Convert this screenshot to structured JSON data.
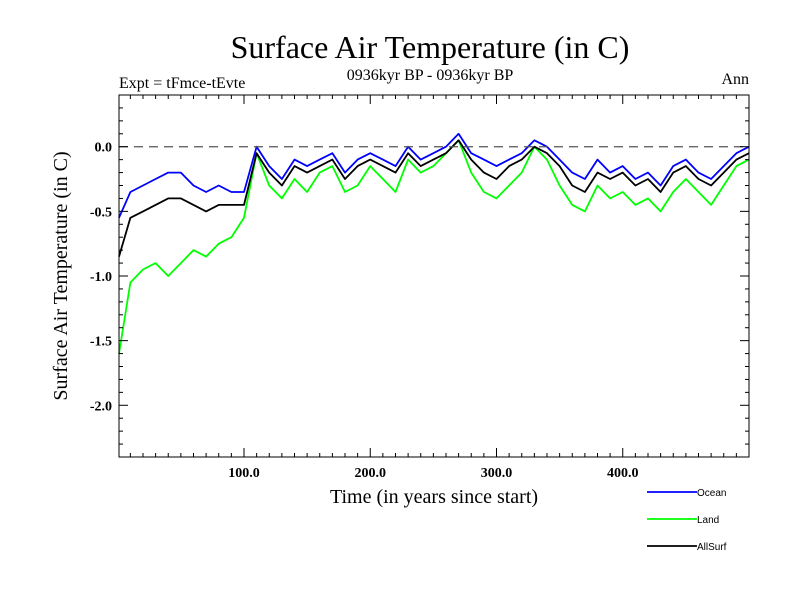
{
  "chart_data": {
    "type": "line",
    "title": "Surface Air Temperature (in C)",
    "subtitle": "0936kyr BP - 0936kyr BP",
    "left_label": "Expt = tFmce-tEvte",
    "right_label": "Ann",
    "xlabel": "Time (in years since start)",
    "ylabel": "Surface Air Temperature (in C)",
    "xlim": [
      1,
      500
    ],
    "ylim": [
      -2.4,
      0.4
    ],
    "x_ticks": [
      100,
      200,
      300,
      400
    ],
    "x_tick_labels": [
      "100.0",
      "200.0",
      "300.0",
      "400.0"
    ],
    "y_ticks": [
      0.0,
      -0.5,
      -1.0,
      -1.5,
      -2.0
    ],
    "y_tick_labels": [
      "0.0",
      "-0.5",
      "-1.0",
      "-1.5",
      "-2.0"
    ],
    "reference_line": 0.0,
    "legend_position": "bottom-right",
    "series_description": "annual values for years 1-500, approximated from the figure",
    "series": [
      {
        "name": "Ocean",
        "color": "#0000ff",
        "x": [
          1,
          10,
          20,
          30,
          40,
          50,
          60,
          70,
          80,
          90,
          100,
          110,
          120,
          130,
          140,
          150,
          160,
          170,
          180,
          190,
          200,
          210,
          220,
          230,
          240,
          250,
          260,
          270,
          280,
          290,
          300,
          310,
          320,
          330,
          340,
          350,
          360,
          370,
          380,
          390,
          400,
          410,
          420,
          430,
          440,
          450,
          460,
          470,
          480,
          490,
          500
        ],
        "values": [
          -0.55,
          -0.35,
          -0.3,
          -0.25,
          -0.2,
          -0.2,
          -0.3,
          -0.35,
          -0.3,
          -0.35,
          -0.35,
          0.0,
          -0.15,
          -0.25,
          -0.1,
          -0.15,
          -0.1,
          -0.05,
          -0.2,
          -0.1,
          -0.05,
          -0.1,
          -0.15,
          0.0,
          -0.1,
          -0.05,
          0.0,
          0.1,
          -0.05,
          -0.1,
          -0.15,
          -0.1,
          -0.05,
          0.05,
          0.0,
          -0.1,
          -0.2,
          -0.25,
          -0.1,
          -0.2,
          -0.15,
          -0.25,
          -0.2,
          -0.3,
          -0.15,
          -0.1,
          -0.2,
          -0.25,
          -0.15,
          -0.05,
          0.0
        ]
      },
      {
        "name": "Land",
        "color": "#00ff00",
        "x": [
          1,
          10,
          20,
          30,
          40,
          50,
          60,
          70,
          80,
          90,
          100,
          110,
          120,
          130,
          140,
          150,
          160,
          170,
          180,
          190,
          200,
          210,
          220,
          230,
          240,
          250,
          260,
          270,
          280,
          290,
          300,
          310,
          320,
          330,
          340,
          350,
          360,
          370,
          380,
          390,
          400,
          410,
          420,
          430,
          440,
          450,
          460,
          470,
          480,
          490,
          500
        ],
        "values": [
          -1.6,
          -1.05,
          -0.95,
          -0.9,
          -1.0,
          -0.9,
          -0.8,
          -0.85,
          -0.75,
          -0.7,
          -0.55,
          -0.05,
          -0.3,
          -0.4,
          -0.25,
          -0.35,
          -0.2,
          -0.15,
          -0.35,
          -0.3,
          -0.15,
          -0.25,
          -0.35,
          -0.1,
          -0.2,
          -0.15,
          -0.05,
          0.05,
          -0.2,
          -0.35,
          -0.4,
          -0.3,
          -0.2,
          0.0,
          -0.1,
          -0.3,
          -0.45,
          -0.5,
          -0.3,
          -0.4,
          -0.35,
          -0.45,
          -0.4,
          -0.5,
          -0.35,
          -0.25,
          -0.35,
          -0.45,
          -0.3,
          -0.15,
          -0.1
        ]
      },
      {
        "name": "AllSurf",
        "color": "#000000",
        "x": [
          1,
          10,
          20,
          30,
          40,
          50,
          60,
          70,
          80,
          90,
          100,
          110,
          120,
          130,
          140,
          150,
          160,
          170,
          180,
          190,
          200,
          210,
          220,
          230,
          240,
          250,
          260,
          270,
          280,
          290,
          300,
          310,
          320,
          330,
          340,
          350,
          360,
          370,
          380,
          390,
          400,
          410,
          420,
          430,
          440,
          450,
          460,
          470,
          480,
          490,
          500
        ],
        "values": [
          -0.85,
          -0.55,
          -0.5,
          -0.45,
          -0.4,
          -0.4,
          -0.45,
          -0.5,
          -0.45,
          -0.45,
          -0.45,
          -0.05,
          -0.2,
          -0.3,
          -0.15,
          -0.2,
          -0.15,
          -0.1,
          -0.25,
          -0.15,
          -0.1,
          -0.15,
          -0.2,
          -0.05,
          -0.15,
          -0.1,
          -0.05,
          0.05,
          -0.1,
          -0.2,
          -0.25,
          -0.15,
          -0.1,
          0.0,
          -0.05,
          -0.15,
          -0.3,
          -0.35,
          -0.2,
          -0.25,
          -0.2,
          -0.3,
          -0.25,
          -0.35,
          -0.2,
          -0.15,
          -0.25,
          -0.3,
          -0.2,
          -0.1,
          -0.05
        ]
      }
    ]
  }
}
